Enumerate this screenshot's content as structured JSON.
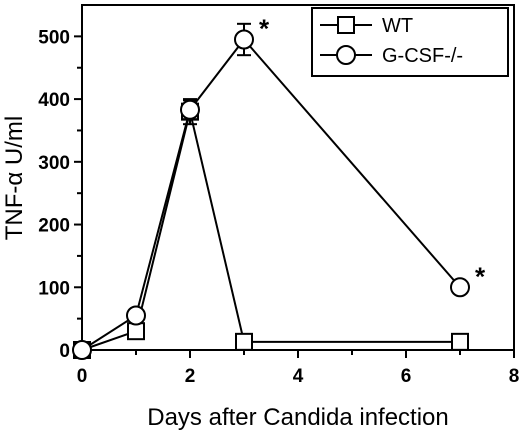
{
  "chart_data": {
    "type": "line",
    "title": "",
    "xlabel": "Days after Candida infection",
    "ylabel": "TNF-α U/ml",
    "xlim": [
      0,
      8
    ],
    "ylim": [
      0,
      550
    ],
    "xticks": [
      "0",
      "2",
      "4",
      "6",
      "8"
    ],
    "yticks": [
      "0",
      "100",
      "200",
      "300",
      "400",
      "500"
    ],
    "grid": false,
    "legend_position": "top-right",
    "series": [
      {
        "name": "WT",
        "marker": "square",
        "x": [
          0,
          1,
          2,
          3,
          7
        ],
        "y": [
          0,
          30,
          380,
          13,
          13
        ],
        "err": [
          0,
          8,
          20,
          5,
          5
        ]
      },
      {
        "name": "G-CSF-/-",
        "marker": "circle",
        "x": [
          0,
          1,
          2,
          3,
          7
        ],
        "y": [
          0,
          55,
          383,
          495,
          100
        ],
        "err": [
          0,
          8,
          15,
          25,
          5
        ]
      }
    ],
    "annotations": [
      {
        "text": "*",
        "x": 3,
        "y": 495
      },
      {
        "text": "*",
        "x": 7,
        "y": 100
      }
    ]
  }
}
